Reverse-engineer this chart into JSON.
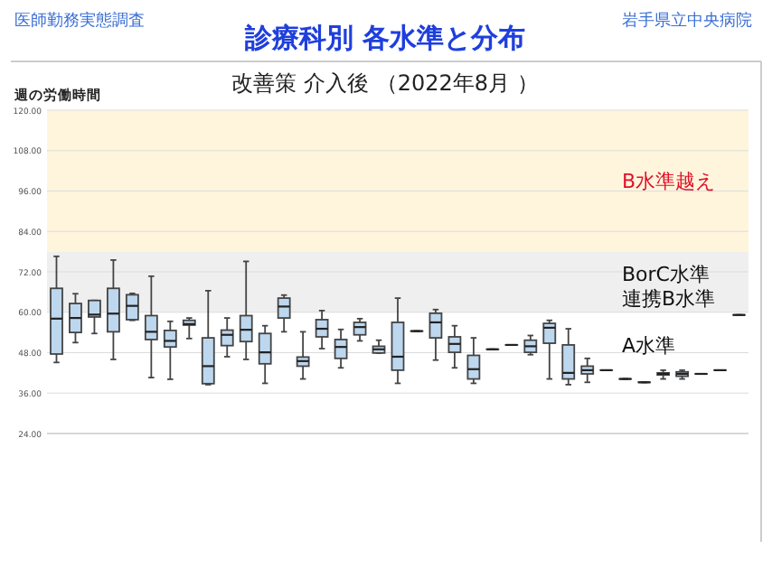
{
  "chart_data": {
    "type": "box",
    "title": "診療科別  各水準と分布",
    "subtitle": "改善策 介入後 （2022年8月 ）",
    "ylabel": "週の労働時間",
    "annotations": [
      "医師勤務実態調査",
      "岩手県立中央病院",
      "連携B水準",
      "A水準"
    ],
    "categories": [
      null,
      null,
      null,
      null,
      null,
      null,
      null,
      null,
      null,
      null,
      null,
      null,
      null,
      null,
      null,
      null,
      null,
      null,
      null,
      null,
      null,
      null,
      null,
      null,
      null,
      null,
      null,
      null,
      null,
      null,
      null,
      null,
      null,
      null,
      null,
      null,
      null
    ],
    "color": "#bdd7ee",
    "ylim": [
      24,
      120
    ],
    "yticks": [
      {
        "value": 24,
        "label": "24.00"
      },
      {
        "value": 36,
        "label": "36.00"
      },
      {
        "value": 48,
        "label": "48.00"
      },
      {
        "value": 60,
        "label": "60.00"
      },
      {
        "value": 72,
        "label": "72.00"
      },
      {
        "value": 84,
        "label": "84.00"
      },
      {
        "value": 96,
        "label": "96.00"
      },
      {
        "value": 108,
        "label": "108.00"
      },
      {
        "value": 120,
        "label": "120.00"
      }
    ],
    "grid": "y",
    "bands": [
      {
        "axis": "y",
        "from": 78,
        "to": 120,
        "label": "B水準越え",
        "color": "#fef5dc"
      },
      {
        "axis": "y",
        "from": 60,
        "to": 78,
        "label": "BorC水準",
        "color": "#efefef"
      }
    ],
    "boxes": [
      {
        "low": 45.1,
        "q1": 47.6,
        "median": 58.1,
        "q3": 67.1,
        "high": 76.6
      },
      {
        "low": 51,
        "q1": 54,
        "median": 58.3,
        "q3": 62.6,
        "high": 65.5
      },
      {
        "low": 53.7,
        "q1": 58.6,
        "median": 59.3,
        "q3": 63.5,
        "high": 63.5
      },
      {
        "low": 46,
        "q1": 54.2,
        "median": 59.6,
        "q3": 67.1,
        "high": 75.5
      },
      {
        "low": 57.6,
        "q1": 57.8,
        "median": 61.9,
        "q3": 65.2,
        "high": 65.6
      },
      {
        "low": 40.6,
        "q1": 51.9,
        "median": 54.2,
        "q3": 59,
        "high": 70.7
      },
      {
        "low": 40.1,
        "q1": 49.7,
        "median": 51.5,
        "q3": 54.6,
        "high": 57.3
      },
      {
        "low": 52.2,
        "q1": 56.2,
        "median": 56.5,
        "q3": 57.6,
        "high": 58.3
      },
      {
        "low": 38.5,
        "q1": 38.8,
        "median": 44,
        "q3": 52.4,
        "high": 66.4
      },
      {
        "low": 46.8,
        "q1": 50.1,
        "median": 53.3,
        "q3": 54.7,
        "high": 58.3
      },
      {
        "low": 46,
        "q1": 51.3,
        "median": 54.8,
        "q3": 59,
        "high": 75.1
      },
      {
        "low": 38.9,
        "q1": 44.7,
        "median": 48.1,
        "q3": 53.7,
        "high": 56
      },
      {
        "low": 54.2,
        "q1": 58.3,
        "median": 61.7,
        "q3": 64.2,
        "high": 65.1
      },
      {
        "low": 40.2,
        "q1": 44,
        "median": 45.5,
        "q3": 46.7,
        "high": 54.2
      },
      {
        "low": 49.2,
        "q1": 52.7,
        "median": 55.1,
        "q3": 57.8,
        "high": 60.5
      },
      {
        "low": 43.5,
        "q1": 46.3,
        "median": 49.7,
        "q3": 51.9,
        "high": 54.9
      },
      {
        "low": 51.5,
        "q1": 53.3,
        "median": 55.6,
        "q3": 57,
        "high": 58.1
      },
      {
        "low": 47.9,
        "q1": 47.9,
        "median": 49,
        "q3": 49.9,
        "high": 51.7
      },
      {
        "low": 38.9,
        "q1": 42.8,
        "median": 46.8,
        "q3": 57,
        "high": 64.2
      },
      {
        "low": 54.4,
        "q1": 54.4,
        "median": 54.4,
        "q3": 54.4,
        "high": 54.4
      },
      {
        "low": 45.8,
        "q1": 52.4,
        "median": 57,
        "q3": 59.7,
        "high": 60.8
      },
      {
        "low": 43.5,
        "q1": 48.1,
        "median": 50.6,
        "q3": 52.7,
        "high": 56
      },
      {
        "low": 38.9,
        "q1": 40.2,
        "median": 43.1,
        "q3": 47.2,
        "high": 52.4
      },
      {
        "low": 49,
        "q1": 49,
        "median": 49,
        "q3": 49,
        "high": 49
      },
      {
        "low": 50.3,
        "q1": 50.3,
        "median": 50.3,
        "q3": 50.3,
        "high": 50.3
      },
      {
        "low": 47.4,
        "q1": 48.1,
        "median": 49.9,
        "q3": 51.7,
        "high": 53.1
      },
      {
        "low": 40.2,
        "q1": 50.8,
        "median": 55.4,
        "q3": 56.7,
        "high": 57.6
      },
      {
        "low": 38.5,
        "q1": 40.2,
        "median": 42,
        "q3": 50.3,
        "high": 55.1
      },
      {
        "low": 39.2,
        "q1": 41.7,
        "median": 42.8,
        "q3": 44,
        "high": 46.3
      },
      {
        "low": 42.8,
        "q1": 42.8,
        "median": 42.8,
        "q3": 42.8,
        "high": 42.8
      },
      {
        "low": 40.2,
        "q1": 40.2,
        "median": 40.2,
        "q3": 40.2,
        "high": 40.2
      },
      {
        "low": 39.2,
        "q1": 39.2,
        "median": 39.2,
        "q3": 39.2,
        "high": 39.2
      },
      {
        "low": 40.2,
        "q1": 41.4,
        "median": 41.7,
        "q3": 42,
        "high": 42.8
      },
      {
        "low": 40.2,
        "q1": 41,
        "median": 41.7,
        "q3": 42.3,
        "high": 42.8
      },
      {
        "low": 41.7,
        "q1": 41.7,
        "median": 41.7,
        "q3": 41.7,
        "high": 41.7
      },
      {
        "low": 42.8,
        "q1": 42.8,
        "median": 42.8,
        "q3": 42.8,
        "high": 42.8
      },
      {
        "low": 59.2,
        "q1": 59.2,
        "median": 59.2,
        "q3": 59.2,
        "high": 59.2
      }
    ]
  }
}
